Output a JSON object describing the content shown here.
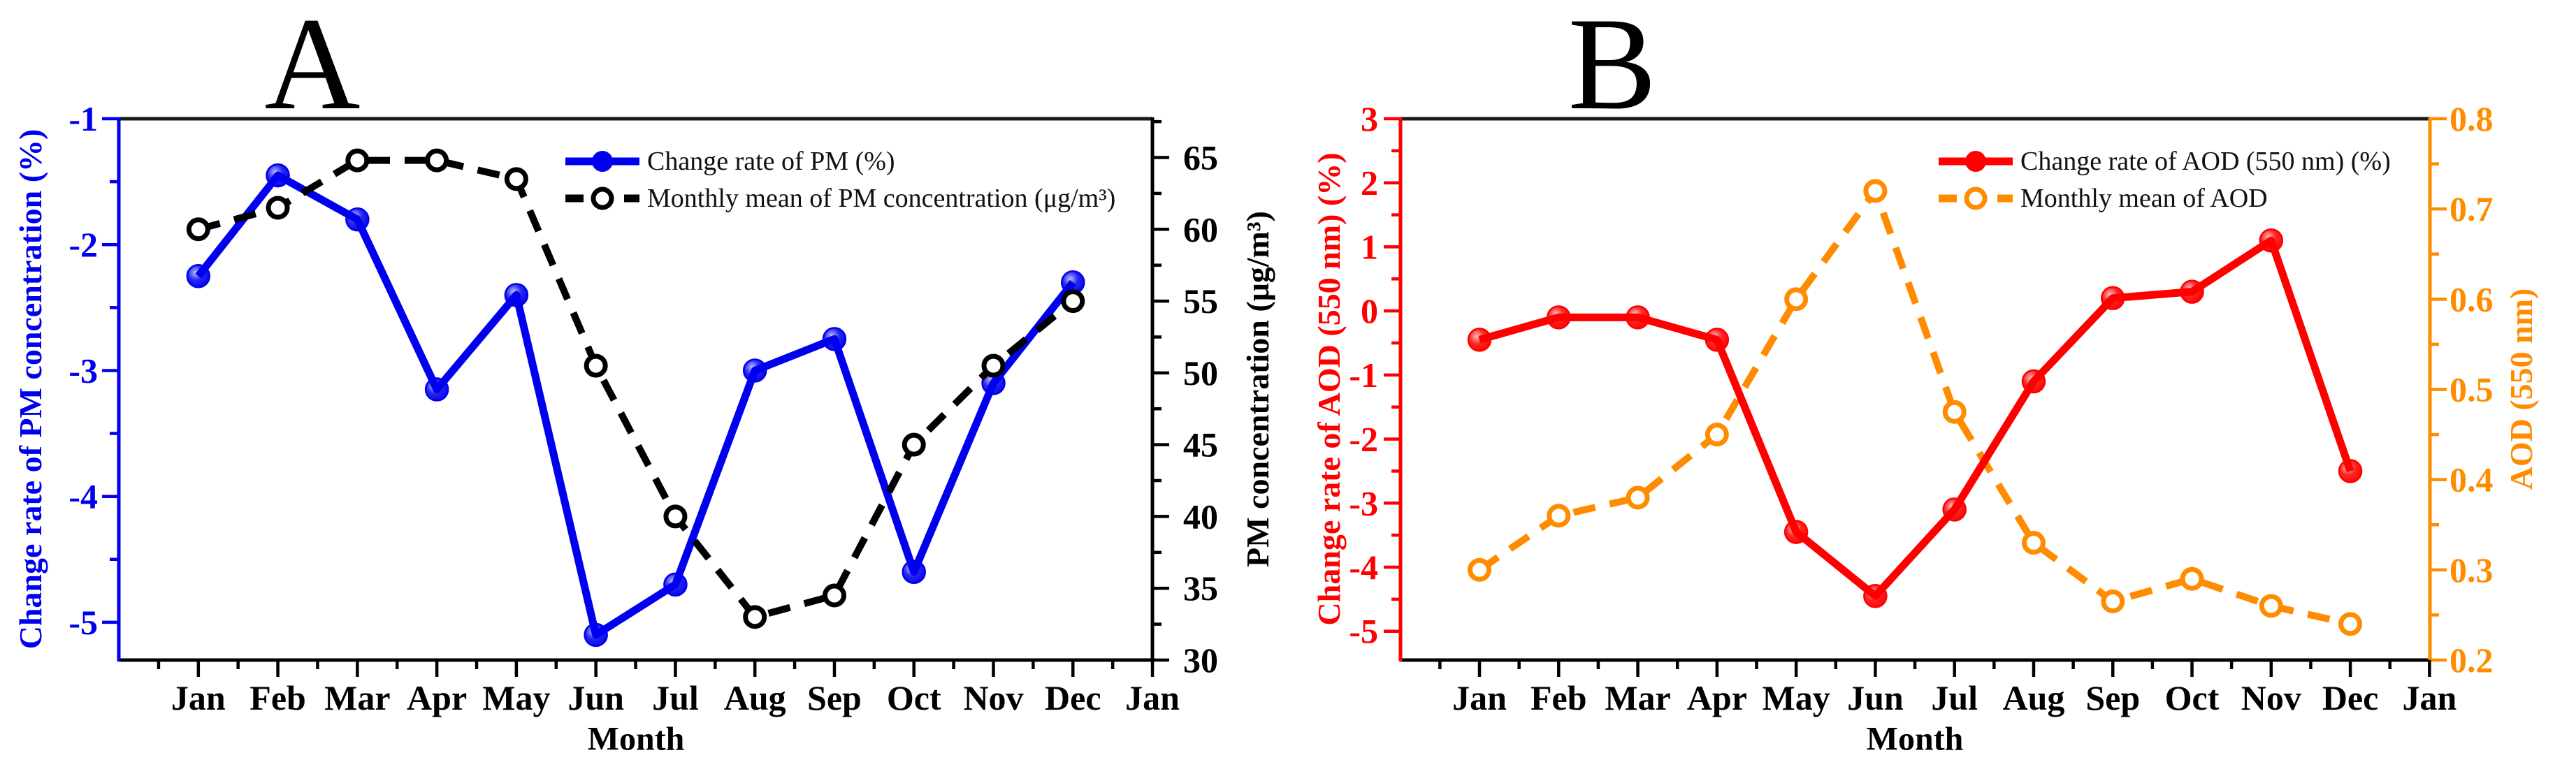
{
  "chart_data": [
    {
      "type": "line",
      "panel_label": "A",
      "xlabel": "Month",
      "x_categories": [
        "Jan",
        "Feb",
        "Mar",
        "Apr",
        "May",
        "Jun",
        "Jul",
        "Aug",
        "Sep",
        "Oct",
        "Nov",
        "Dec",
        "Jan"
      ],
      "grid": false,
      "legend_position": "top-right",
      "left_axis": {
        "label": "Change rate of PM concentration (%)",
        "color": "#0000ee",
        "ticks": [
          -1,
          -2,
          -3,
          -4,
          -5
        ],
        "tick_labels": [
          "-1",
          "-2",
          "-3",
          "-4",
          "-5"
        ],
        "range": [
          -5.3,
          -1
        ]
      },
      "right_axis": {
        "label": "PM concentration (μg/m³)",
        "color": "#000000",
        "ticks": [
          65,
          60,
          55,
          50,
          45,
          40,
          35,
          30
        ],
        "tick_labels": [
          "65",
          "60",
          "55",
          "50",
          "45",
          "40",
          "35",
          "30"
        ],
        "range": [
          30,
          67.7
        ]
      },
      "series": [
        {
          "name": "Change rate of PM (%)",
          "axis": "left",
          "color": "#0000ee",
          "line": "solid",
          "marker": "filled-circle",
          "values": [
            -2.25,
            -1.45,
            -1.8,
            -3.15,
            -2.4,
            -5.1,
            -4.7,
            -3.0,
            -2.75,
            -4.6,
            -3.1,
            -2.3
          ]
        },
        {
          "name": "Monthly mean of PM concentration (μg/m³)",
          "axis": "right",
          "color": "#000000",
          "line": "dashed",
          "marker": "open-circle",
          "values": [
            60,
            61.5,
            64.8,
            64.8,
            63.5,
            50.5,
            40,
            33,
            34.5,
            45,
            50.5,
            55
          ]
        }
      ]
    },
    {
      "type": "line",
      "panel_label": "B",
      "xlabel": "Month",
      "x_categories": [
        "Jan",
        "Feb",
        "Mar",
        "Apr",
        "May",
        "Jun",
        "Jul",
        "Aug",
        "Sep",
        "Oct",
        "Nov",
        "Dec",
        "Jan"
      ],
      "grid": false,
      "legend_position": "top-right",
      "left_axis": {
        "label": "Change rate of AOD (550 nm) (%)",
        "color": "#fe0000",
        "ticks": [
          3,
          2,
          1,
          0,
          -1,
          -2,
          -3,
          -4,
          -5
        ],
        "tick_labels": [
          "3",
          "2",
          "1",
          "0",
          "-1",
          "-2",
          "-3",
          "-4",
          "-5"
        ],
        "range": [
          -5.45,
          3
        ]
      },
      "right_axis": {
        "label": "AOD (550 nm)",
        "color": "#ff8c00",
        "ticks": [
          0.8,
          0.7,
          0.6,
          0.5,
          0.4,
          0.3,
          0.2
        ],
        "tick_labels": [
          "0.8",
          "0.7",
          "0.6",
          "0.5",
          "0.4",
          "0.3",
          "0.2"
        ],
        "range": [
          0.2,
          0.8
        ]
      },
      "series": [
        {
          "name": "Change rate of AOD (550 nm) (%)",
          "axis": "left",
          "color": "#fe0000",
          "line": "solid",
          "marker": "filled-circle",
          "values": [
            -0.45,
            -0.1,
            -0.1,
            -0.45,
            -3.45,
            -4.45,
            -3.1,
            -1.1,
            0.2,
            0.3,
            1.1,
            -2.5
          ]
        },
        {
          "name": "Monthly mean of AOD",
          "axis": "right",
          "color": "#ff8c00",
          "line": "dashed",
          "marker": "open-circle",
          "values": [
            0.3,
            0.36,
            0.38,
            0.45,
            0.6,
            0.72,
            0.475,
            0.33,
            0.265,
            0.29,
            0.26,
            0.24
          ]
        }
      ]
    }
  ]
}
